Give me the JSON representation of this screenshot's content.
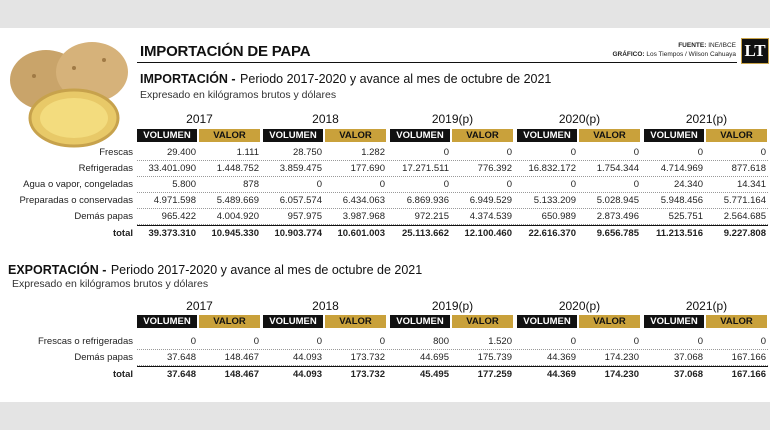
{
  "header": {
    "title": "IMPORTACIÓN DE PAPA",
    "source_label": "FUENTE:",
    "source": "INE/IBCE",
    "credit_label": "GRÁFICO:",
    "credit": "Los Tiempos / Wilson Cahuaya",
    "logo": "LT"
  },
  "sections": [
    {
      "heading": "IMPORTACIÓN -",
      "period": "Periodo 2017-2020 y avance al mes de octubre de 2021",
      "unit": "Expresado en kilógramos brutos y dólares",
      "years": [
        {
          "year": "2017"
        },
        {
          "year": "2018"
        },
        {
          "year": "2019",
          "note": "(p)"
        },
        {
          "year": "2020",
          "note": "(p)"
        },
        {
          "year": "2021",
          "note": "(p)"
        }
      ],
      "column_headers": [
        "VOLUMEN",
        "VALOR"
      ],
      "rows": [
        {
          "label": "Frescas",
          "cells": [
            "29.400",
            "1.111",
            "28.750",
            "1.282",
            "0",
            "0",
            "0",
            "0",
            "0",
            "0"
          ]
        },
        {
          "label": "Refrigeradas",
          "cells": [
            "33.401.090",
            "1.448.752",
            "3.859.475",
            "177.690",
            "17.271.511",
            "776.392",
            "16.832.172",
            "1.754.344",
            "4.714.969",
            "877.618"
          ]
        },
        {
          "label": "Agua o vapor, congeladas",
          "cells": [
            "5.800",
            "878",
            "0",
            "0",
            "0",
            "0",
            "0",
            "0",
            "24.340",
            "14.341"
          ]
        },
        {
          "label": "Preparadas o conservadas",
          "cells": [
            "4.971.598",
            "5.489.669",
            "6.057.574",
            "6.434.063",
            "6.869.936",
            "6.949.529",
            "5.133.209",
            "5.028.945",
            "5.948.456",
            "5.771.164"
          ]
        },
        {
          "label": "Demás papas",
          "cells": [
            "965.422",
            "4.004.920",
            "957.975",
            "3.987.968",
            "972.215",
            "4.374.539",
            "650.989",
            "2.873.496",
            "525.751",
            "2.564.685"
          ]
        }
      ],
      "total": {
        "label": "total",
        "cells": [
          "39.373.310",
          "10.945.330",
          "10.903.774",
          "10.601.003",
          "25.113.662",
          "12.100.460",
          "22.616.370",
          "9.656.785",
          "11.213.516",
          "9.227.808"
        ]
      }
    },
    {
      "heading": "EXPORTACIÓN -",
      "period": "Periodo 2017-2020 y avance al mes de octubre de 2021",
      "unit": "Expresado en kilógramos brutos y dólares",
      "years": [
        {
          "year": "2017"
        },
        {
          "year": "2018"
        },
        {
          "year": "2019",
          "note": "(p)"
        },
        {
          "year": "2020",
          "note": "(p)"
        },
        {
          "year": "2021",
          "note": "(p)"
        }
      ],
      "column_headers": [
        "VOLUMEN",
        "VALOR"
      ],
      "rows": [
        {
          "label": "Frescas o refrigeradas",
          "cells": [
            "0",
            "0",
            "0",
            "0",
            "800",
            "1.520",
            "0",
            "0",
            "0",
            "0"
          ]
        },
        {
          "label": "Demás papas",
          "cells": [
            "37.648",
            "148.467",
            "44.093",
            "173.732",
            "44.695",
            "175.739",
            "44.369",
            "174.230",
            "37.068",
            "167.166"
          ]
        }
      ],
      "total": {
        "label": "total",
        "cells": [
          "37.648",
          "148.467",
          "44.093",
          "173.732",
          "45.495",
          "177.259",
          "44.369",
          "174.230",
          "37.068",
          "167.166"
        ]
      }
    }
  ]
}
